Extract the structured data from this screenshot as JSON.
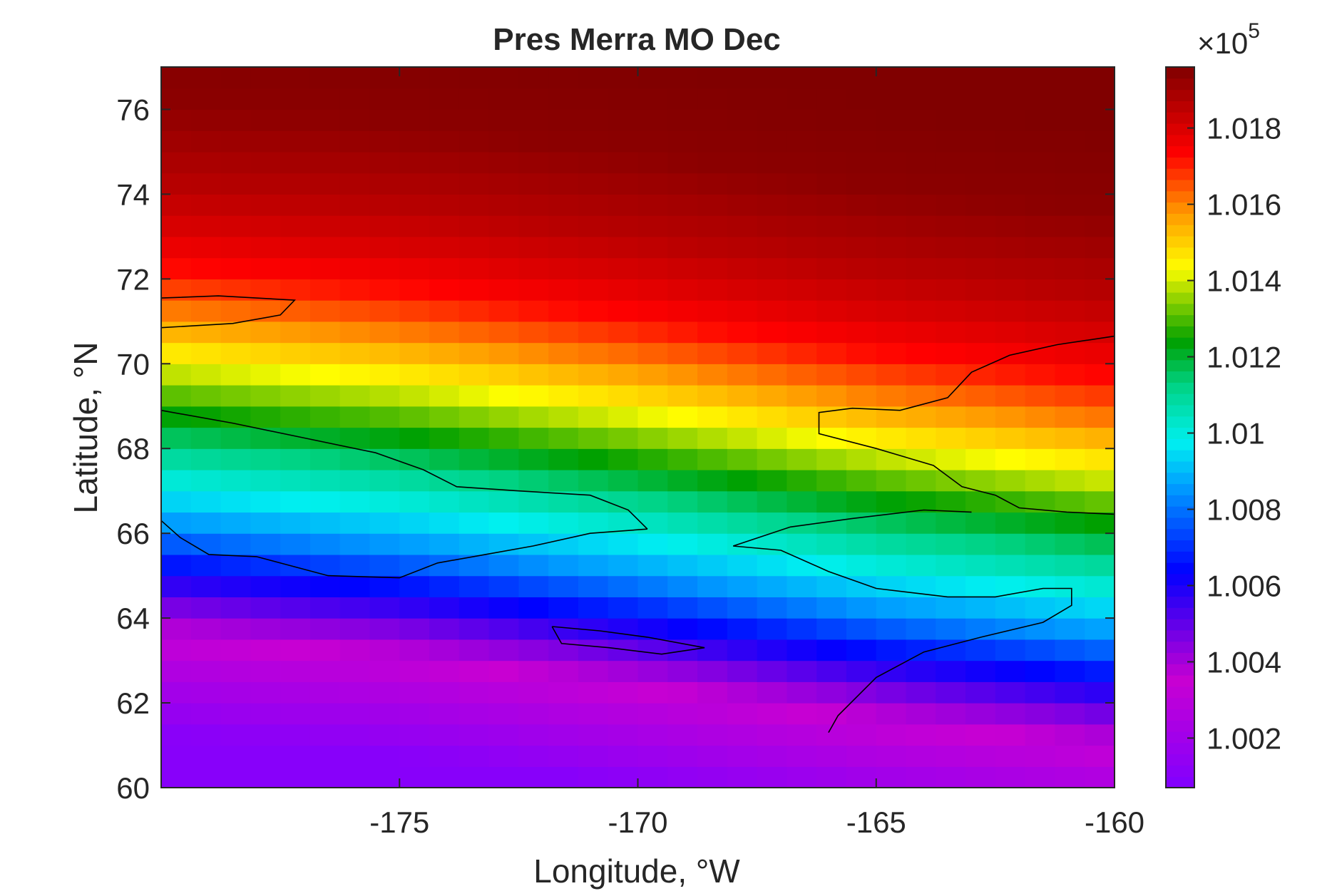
{
  "chart_data": {
    "type": "heatmap",
    "title": "Pres Merra MO Dec",
    "xlabel": "Longitude, °W",
    "ylabel": "Latitude, °N",
    "xlim": [
      -180,
      -160
    ],
    "ylim": [
      60,
      77
    ],
    "x_ticks": [
      -175,
      -170,
      -165,
      -160
    ],
    "y_ticks": [
      60,
      62,
      64,
      66,
      68,
      70,
      72,
      74,
      76
    ],
    "x_tick_labels": [
      "-175",
      "-170",
      "-165",
      "-160"
    ],
    "y_tick_labels": [
      "60",
      "62",
      "64",
      "66",
      "68",
      "70",
      "72",
      "74",
      "76"
    ],
    "colormap": "jet-like with magenta/purple low end",
    "colorbar": {
      "exponent_label": "×10",
      "exponent_power": "5",
      "range": [
        1.0007,
        1.0196
      ],
      "ticks": [
        1.002,
        1.004,
        1.006,
        1.008,
        1.01,
        1.012,
        1.014,
        1.016,
        1.018
      ],
      "tick_labels": [
        "1.002",
        "1.004",
        "1.006",
        "1.008",
        "1.01",
        "1.012",
        "1.014",
        "1.016",
        "1.018"
      ]
    },
    "grid": {
      "lon_step": 0.625,
      "lat_step": 0.5,
      "lon_start": -180,
      "lat_start": 60
    },
    "pressure_profile_by_latitude": [
      {
        "lat": 60.0,
        "value": 1.001
      },
      {
        "lat": 61.0,
        "value": 1.002
      },
      {
        "lat": 62.0,
        "value": 1.003
      },
      {
        "lat": 63.0,
        "value": 1.0045
      },
      {
        "lat": 64.0,
        "value": 1.0065
      },
      {
        "lat": 65.0,
        "value": 1.0085
      },
      {
        "lat": 66.0,
        "value": 1.01
      },
      {
        "lat": 67.0,
        "value": 1.0115
      },
      {
        "lat": 68.0,
        "value": 1.013
      },
      {
        "lat": 69.0,
        "value": 1.0145
      },
      {
        "lat": 70.0,
        "value": 1.016
      },
      {
        "lat": 71.0,
        "value": 1.0172
      },
      {
        "lat": 72.0,
        "value": 1.018
      },
      {
        "lat": 73.0,
        "value": 1.0186
      },
      {
        "lat": 74.0,
        "value": 1.019
      },
      {
        "lat": 75.0,
        "value": 1.0194
      },
      {
        "lat": 77.0,
        "value": 1.0196
      }
    ],
    "longitude_effects": [
      {
        "lon": -180,
        "shift": 1.2
      },
      {
        "lon": -175,
        "shift": 0.7
      },
      {
        "lon": -170,
        "shift": 0.0
      },
      {
        "lon": -165,
        "shift": -0.8
      },
      {
        "lon": -160,
        "shift": -1.4
      }
    ],
    "coastlines": [
      {
        "name": "Wrangel Island",
        "lonlat": [
          [
            -180,
            71.55
          ],
          [
            -178.8,
            71.6
          ],
          [
            -177.2,
            71.5
          ],
          [
            -177.5,
            71.15
          ],
          [
            -178.5,
            70.95
          ],
          [
            -180,
            70.85
          ]
        ]
      },
      {
        "name": "Chukotka north coast",
        "lonlat": [
          [
            -180,
            68.9
          ],
          [
            -178.5,
            68.6
          ],
          [
            -177,
            68.25
          ],
          [
            -175.5,
            67.9
          ],
          [
            -174.5,
            67.5
          ],
          [
            -173.8,
            67.1
          ],
          [
            -172.5,
            67.0
          ],
          [
            -171,
            66.9
          ],
          [
            -170.2,
            66.55
          ],
          [
            -169.8,
            66.1
          ]
        ]
      },
      {
        "name": "Chukotka south coast",
        "lonlat": [
          [
            -169.8,
            66.1
          ],
          [
            -171,
            66.0
          ],
          [
            -172.2,
            65.7
          ],
          [
            -173.2,
            65.5
          ],
          [
            -174.2,
            65.3
          ],
          [
            -175,
            64.95
          ],
          [
            -176.5,
            65.0
          ],
          [
            -178,
            65.45
          ],
          [
            -179,
            65.5
          ],
          [
            -179.6,
            65.9
          ],
          [
            -180,
            66.3
          ]
        ]
      },
      {
        "name": "St. Lawrence Island",
        "lonlat": [
          [
            -171.8,
            63.8
          ],
          [
            -170.8,
            63.7
          ],
          [
            -169.8,
            63.55
          ],
          [
            -168.6,
            63.3
          ],
          [
            -169.5,
            63.15
          ],
          [
            -170.6,
            63.3
          ],
          [
            -171.6,
            63.4
          ],
          [
            -171.8,
            63.8
          ]
        ]
      },
      {
        "name": "Alaska north coast",
        "lonlat": [
          [
            -160,
            70.65
          ],
          [
            -161.2,
            70.45
          ],
          [
            -162.2,
            70.2
          ],
          [
            -163,
            69.8
          ],
          [
            -163.5,
            69.2
          ],
          [
            -164.5,
            68.9
          ],
          [
            -165.5,
            68.95
          ],
          [
            -166.2,
            68.85
          ],
          [
            -166.2,
            68.35
          ],
          [
            -165,
            68.0
          ],
          [
            -163.8,
            67.6
          ],
          [
            -163.2,
            67.1
          ],
          [
            -162.5,
            66.9
          ],
          [
            -162,
            66.6
          ],
          [
            -161,
            66.5
          ],
          [
            -160,
            66.45
          ]
        ]
      },
      {
        "name": "Seward Peninsula",
        "lonlat": [
          [
            -163,
            66.5
          ],
          [
            -164,
            66.55
          ],
          [
            -165.5,
            66.35
          ],
          [
            -166.8,
            66.15
          ],
          [
            -168.0,
            65.7
          ],
          [
            -167,
            65.6
          ],
          [
            -166,
            65.1
          ],
          [
            -165,
            64.7
          ],
          [
            -163.5,
            64.5
          ],
          [
            -162.5,
            64.5
          ],
          [
            -161.5,
            64.7
          ],
          [
            -160.9,
            64.7
          ],
          [
            -160.9,
            64.3
          ],
          [
            -161.5,
            63.9
          ],
          [
            -162.8,
            63.55
          ],
          [
            -164,
            63.2
          ],
          [
            -165,
            62.6
          ],
          [
            -165.8,
            61.7
          ],
          [
            -166.0,
            61.3
          ]
        ]
      }
    ]
  }
}
